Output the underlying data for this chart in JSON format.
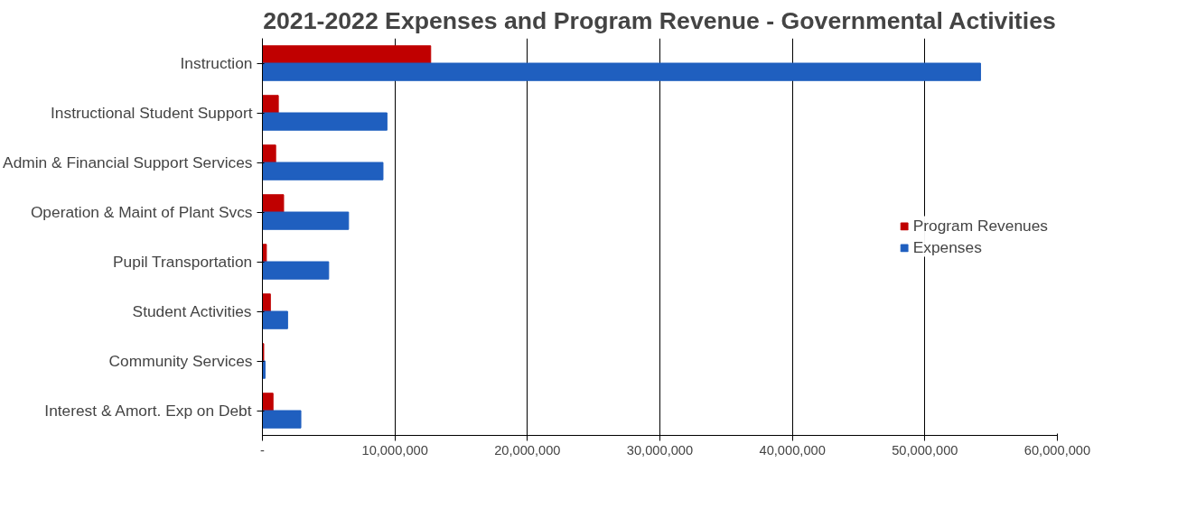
{
  "chart_data": {
    "type": "bar",
    "orientation": "horizontal",
    "title": "2021-2022 Expenses and Program Revenue - Governmental Activities",
    "categories": [
      "Instruction",
      "Instructional Student Support",
      "Admin & Financial Support Services",
      "Operation & Maint of Plant Svcs",
      "Pupil Transportation",
      "Student Activities",
      "Community Services",
      "Interest & Amort. Exp on Debt"
    ],
    "series": [
      {
        "name": "Program Revenues",
        "color": "#c00000",
        "values": [
          12700000,
          1200000,
          1000000,
          1600000,
          300000,
          600000,
          100000,
          800000
        ]
      },
      {
        "name": "Expenses",
        "color": "#1f5fbf",
        "values": [
          54200000,
          9400000,
          9100000,
          6500000,
          5000000,
          1900000,
          200000,
          2900000
        ]
      }
    ],
    "xlim": [
      0,
      60000000
    ],
    "xticks": [
      {
        "value": 0,
        "label": "-"
      },
      {
        "value": 10000000,
        "label": "10,000,000"
      },
      {
        "value": 20000000,
        "label": "20,000,000"
      },
      {
        "value": 30000000,
        "label": "30,000,000"
      },
      {
        "value": 40000000,
        "label": "40,000,000"
      },
      {
        "value": 50000000,
        "label": "50,000,000"
      },
      {
        "value": 60000000,
        "label": "60,000,000"
      }
    ],
    "grid": "x",
    "legend": "right"
  }
}
